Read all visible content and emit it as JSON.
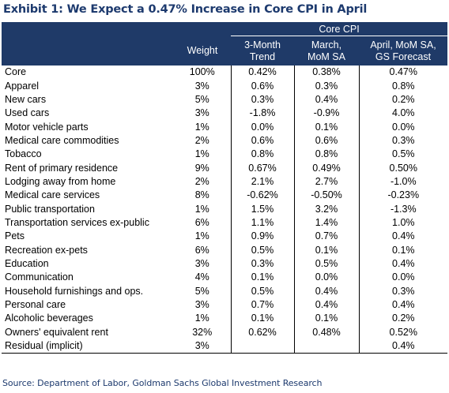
{
  "title": "Exhibit 1: We Expect a 0.47% Increase in Core CPI in April",
  "header": {
    "super": "Core CPI",
    "columns": [
      "Weight",
      "3-Month\nTrend",
      "March,\nMoM SA",
      "April, MoM SA,\nGS Forecast"
    ]
  },
  "rows": [
    {
      "label": "Core",
      "weight": "100%",
      "trend": "0.42%",
      "march": "0.38%",
      "april": "0.47%"
    },
    {
      "label": "Apparel",
      "weight": "3%",
      "trend": "0.6%",
      "march": "0.3%",
      "april": "0.8%"
    },
    {
      "label": "New cars",
      "weight": "5%",
      "trend": "0.3%",
      "march": "0.4%",
      "april": "0.2%"
    },
    {
      "label": "Used cars",
      "weight": "3%",
      "trend": "-1.8%",
      "march": "-0.9%",
      "april": "4.0%"
    },
    {
      "label": "Motor vehicle parts",
      "weight": "1%",
      "trend": "0.0%",
      "march": "0.1%",
      "april": "0.0%"
    },
    {
      "label": "Medical care commodities",
      "weight": "2%",
      "trend": "0.6%",
      "march": "0.6%",
      "april": "0.3%"
    },
    {
      "label": "Tobacco",
      "weight": "1%",
      "trend": "0.8%",
      "march": "0.8%",
      "april": "0.5%"
    },
    {
      "label": "Rent of primary residence",
      "weight": "9%",
      "trend": "0.67%",
      "march": "0.49%",
      "april": "0.50%"
    },
    {
      "label": "Lodging away from home",
      "weight": "2%",
      "trend": "2.1%",
      "march": "2.7%",
      "april": "-1.0%"
    },
    {
      "label": "Medical care services",
      "weight": "8%",
      "trend": "-0.62%",
      "march": "-0.50%",
      "april": "-0.23%"
    },
    {
      "label": "Public transportation",
      "weight": "1%",
      "trend": "1.5%",
      "march": "3.2%",
      "april": "-1.3%"
    },
    {
      "label": "Transportation services ex-public",
      "weight": "6%",
      "trend": "1.1%",
      "march": "1.4%",
      "april": "1.0%"
    },
    {
      "label": "Pets",
      "weight": "1%",
      "trend": "0.9%",
      "march": "0.7%",
      "april": "0.4%"
    },
    {
      "label": "Recreation ex-pets",
      "weight": "6%",
      "trend": "0.5%",
      "march": "0.1%",
      "april": "0.1%"
    },
    {
      "label": "Education",
      "weight": "3%",
      "trend": "0.3%",
      "march": "0.5%",
      "april": "0.4%"
    },
    {
      "label": "Communication",
      "weight": "4%",
      "trend": "0.1%",
      "march": "0.0%",
      "april": "0.0%"
    },
    {
      "label": "Household furnishings and ops.",
      "weight": "5%",
      "trend": "0.5%",
      "march": "0.4%",
      "april": "0.3%"
    },
    {
      "label": "Personal care",
      "weight": "3%",
      "trend": "0.7%",
      "march": "0.4%",
      "april": "0.4%"
    },
    {
      "label": "Alcoholic beverages",
      "weight": "1%",
      "trend": "0.1%",
      "march": "0.1%",
      "april": "0.2%"
    },
    {
      "label": "Owners' equivalent rent",
      "weight": "32%",
      "trend": "0.62%",
      "march": "0.48%",
      "april": "0.52%"
    },
    {
      "label": "Residual (implicit)",
      "weight": "3%",
      "trend": "",
      "march": "",
      "april": "0.4%"
    }
  ],
  "source": "Source: Department of Labor, Goldman Sachs Global Investment Research",
  "colors": {
    "header_bg": "#1f3a68",
    "title": "#1d3a6e"
  }
}
